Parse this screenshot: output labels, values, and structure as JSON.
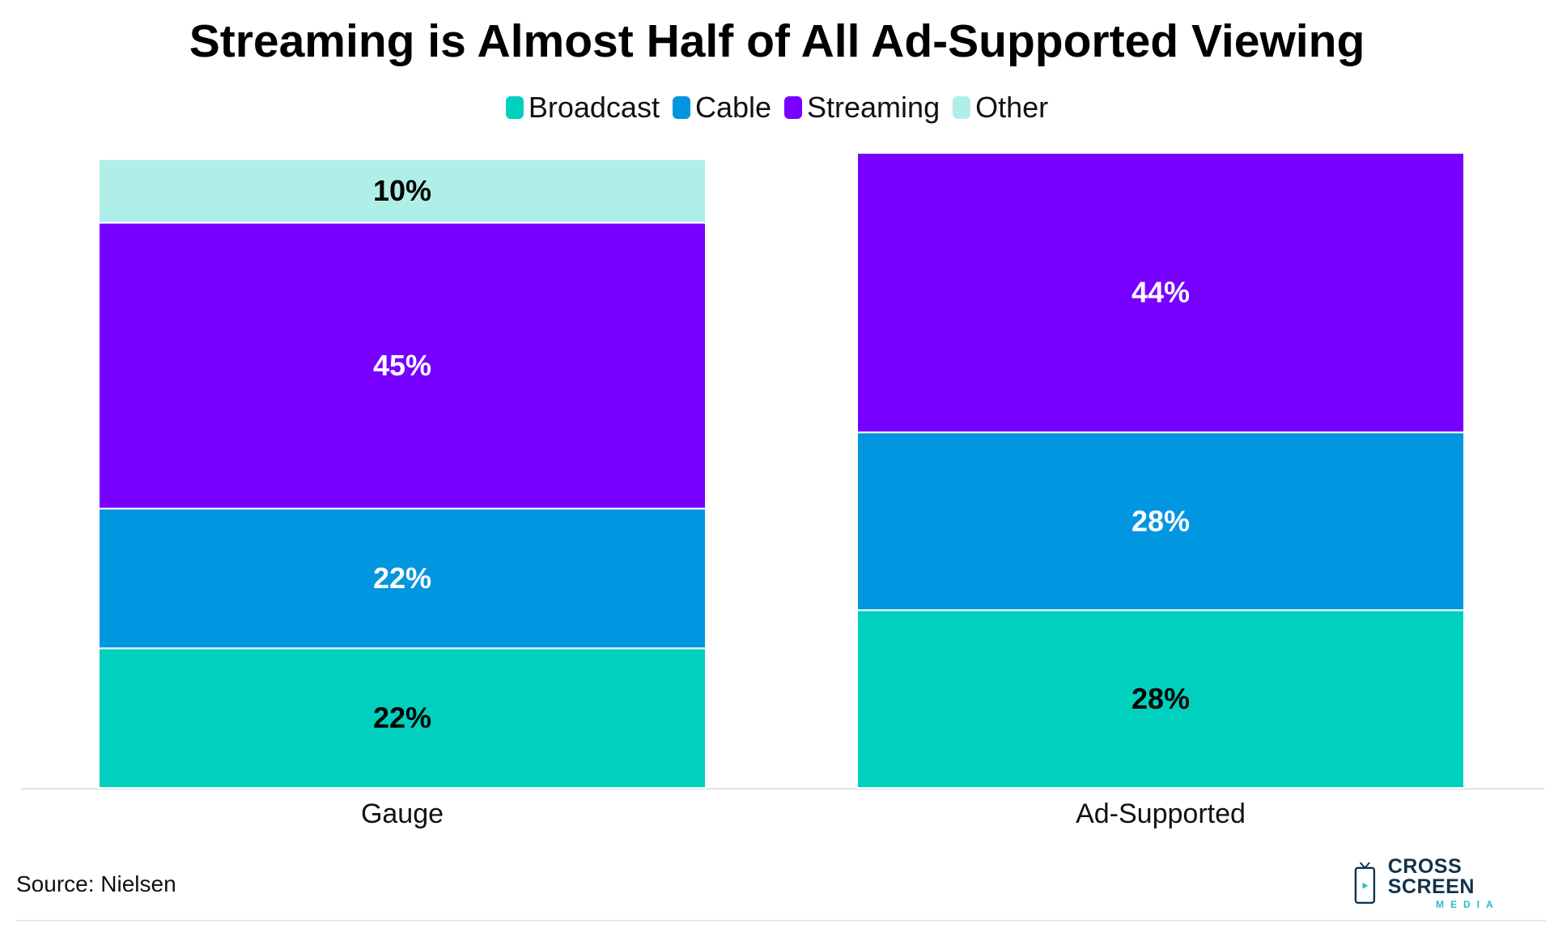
{
  "title": "Streaming is Almost Half of All Ad-Supported Viewing",
  "legend": [
    {
      "label": "Broadcast",
      "color": "#00d1be"
    },
    {
      "label": "Cable",
      "color": "#0096e0"
    },
    {
      "label": "Streaming",
      "color": "#7700ff"
    },
    {
      "label": "Other",
      "color": "#b0eee9"
    }
  ],
  "source": "Source: Nielsen",
  "logo": {
    "main": "CROSS SCREEN",
    "sub": "MEDIA"
  },
  "chart_data": {
    "type": "bar",
    "stacked": true,
    "categories": [
      "Gauge",
      "Ad-Supported"
    ],
    "series": [
      {
        "name": "Broadcast",
        "color": "#00d1be",
        "label_color": "#000000",
        "values": [
          22,
          28
        ],
        "labels": [
          "22%",
          "28%"
        ]
      },
      {
        "name": "Cable",
        "color": "#0096e0",
        "label_color": "#ffffff",
        "values": [
          22,
          28
        ],
        "labels": [
          "22%",
          "28%"
        ]
      },
      {
        "name": "Streaming",
        "color": "#7700ff",
        "label_color": "#ffffff",
        "values": [
          45,
          44
        ],
        "labels": [
          "45%",
          "44%"
        ]
      },
      {
        "name": "Other",
        "color": "#b0eee9",
        "label_color": "#000000",
        "values": [
          10,
          0
        ],
        "labels": [
          "10%",
          ""
        ]
      }
    ],
    "title": "Streaming is Almost Half of All Ad-Supported Viewing",
    "xlabel": "",
    "ylabel": "",
    "ylim": [
      0,
      100
    ],
    "grid": false,
    "legend_position": "top-center"
  }
}
